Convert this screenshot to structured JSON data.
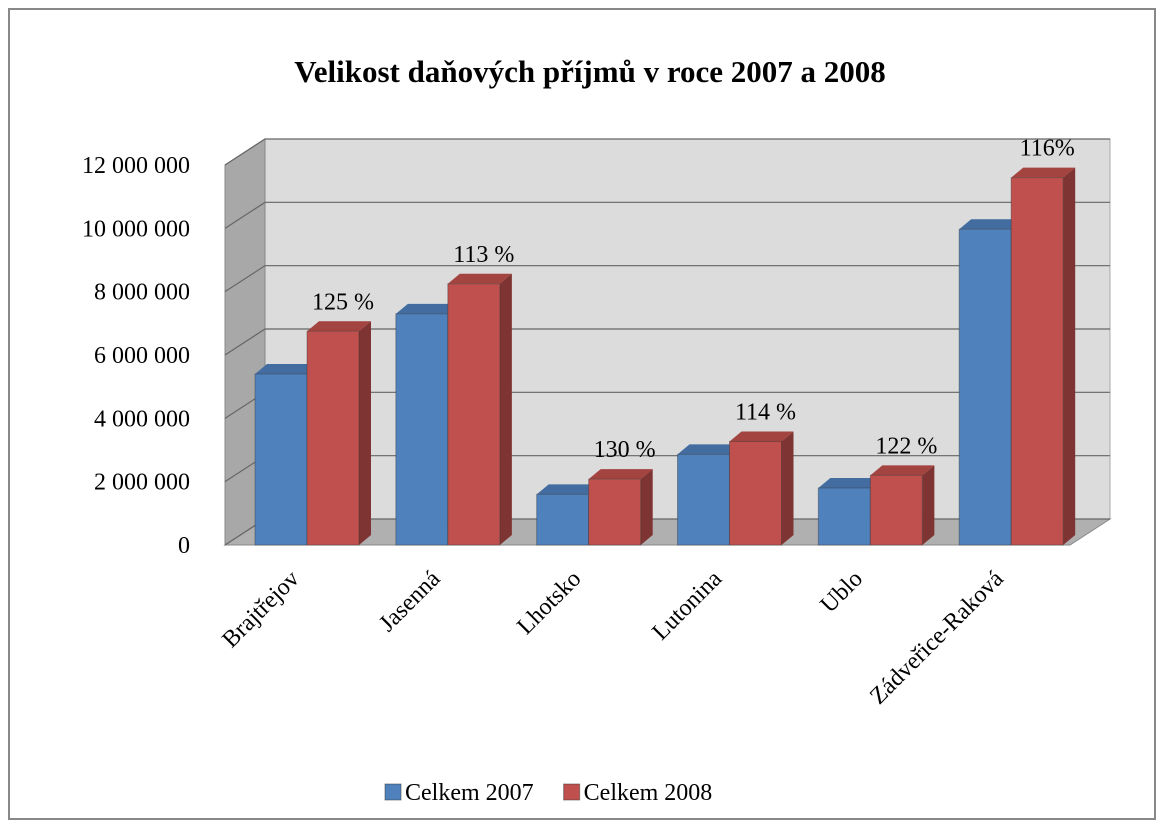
{
  "chart_data": {
    "type": "bar",
    "title": "Velikost daňových příjmů v roce 2007 a 2008",
    "categories": [
      "Brajtřejov",
      "Jasenná",
      "Lhotsko",
      "Lutonina",
      "Ublo",
      "Zádveřice-Raková"
    ],
    "series": [
      {
        "name": "Celkem 2007",
        "color": "#4f81bd",
        "values": [
          5400000,
          7300000,
          1600000,
          2860000,
          1800000,
          9970000
        ]
      },
      {
        "name": "Celkem 2008",
        "color": "#c0504d",
        "values": [
          6750000,
          8250000,
          2080000,
          3270000,
          2200000,
          11600000
        ]
      }
    ],
    "annotations": [
      "125 %",
      "113 %",
      "130 %",
      "114 %",
      "122 %",
      "116%"
    ],
    "ylim": [
      0,
      12000000
    ],
    "yticks": [
      0,
      {
        "value": 2000000,
        "label": "2 000 000"
      },
      {
        "value": 4000000,
        "label": "4 000 000"
      },
      {
        "value": 6000000,
        "label": "6 000 000"
      },
      {
        "value": 8000000,
        "label": "8 000 000"
      },
      {
        "value": 10000000,
        "label": "10 000 000"
      },
      {
        "value": 12000000,
        "label": "12 000 000"
      }
    ],
    "grid": true,
    "legend": "bottom"
  }
}
